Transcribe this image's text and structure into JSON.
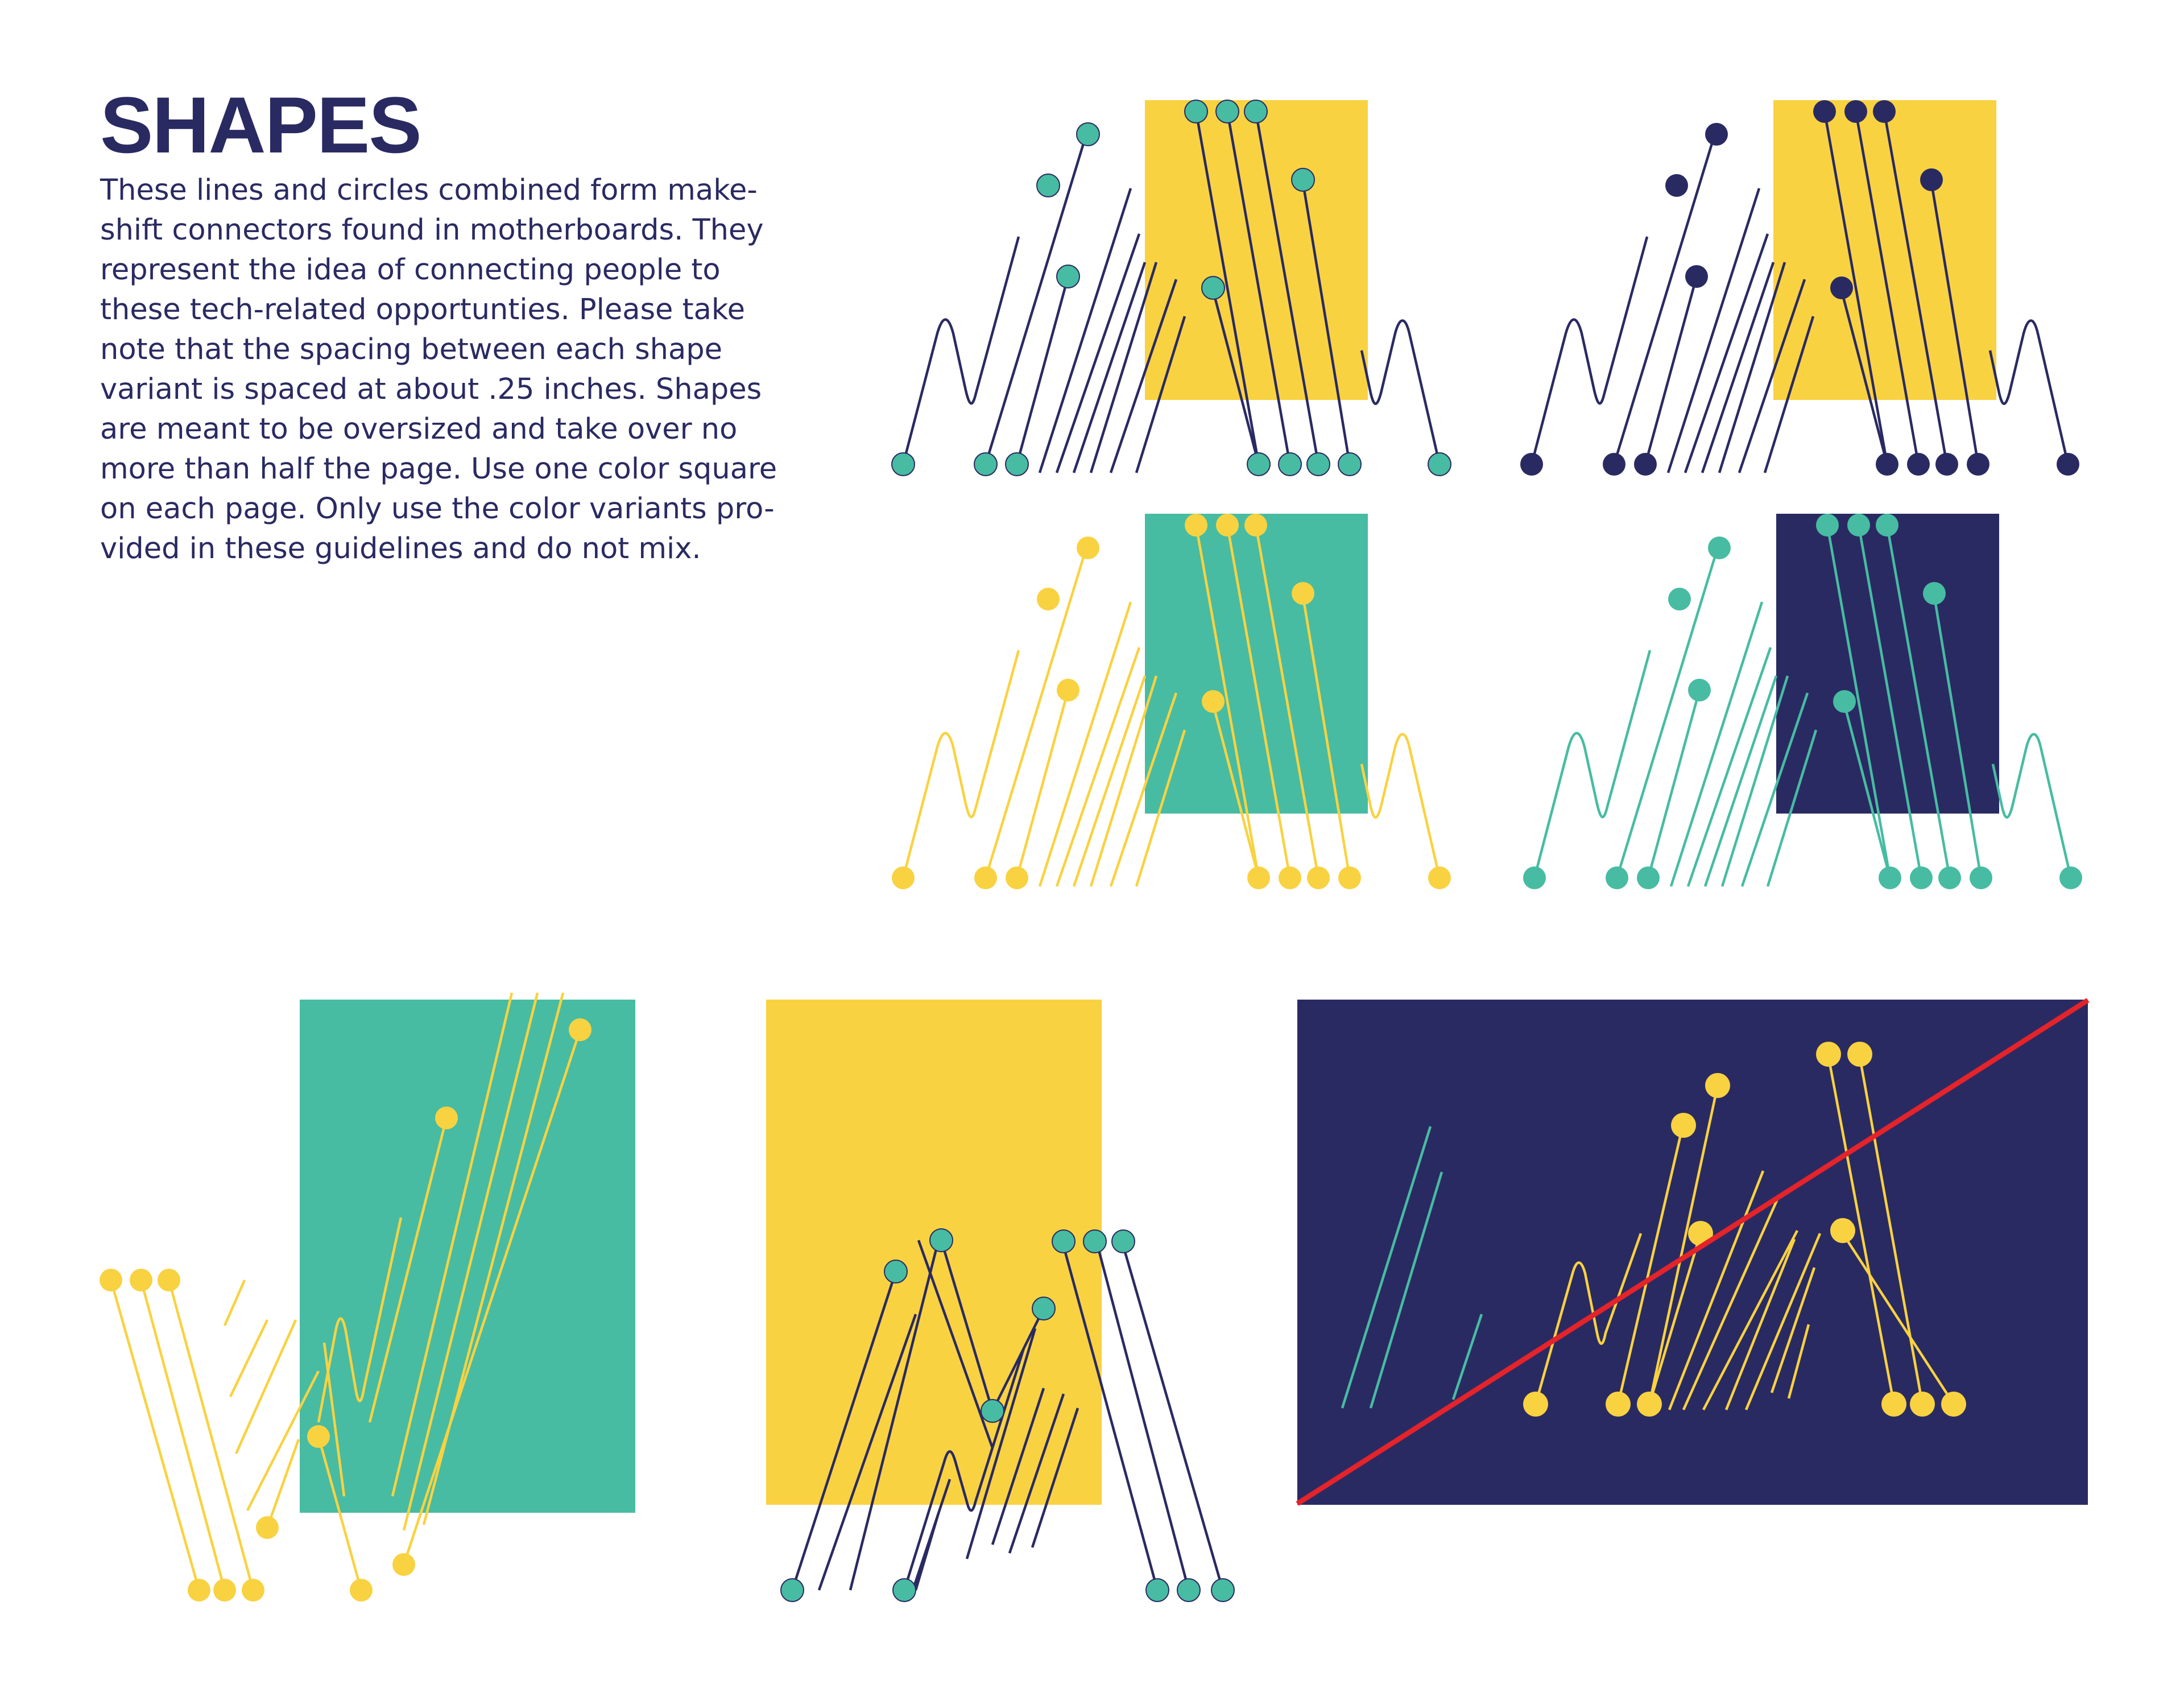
{
  "header": {
    "title": "SHAPES",
    "body_lines": [
      "These lines and circles combined form make-",
      "shift connectors found in motherboards. They",
      "represent the idea of connecting people to",
      "these tech-related opportunties. Please take",
      "note that the spacing between each shape",
      "variant is spaced at about .25 inches. Shapes",
      "are meant to be oversized and take over no",
      "more than half the page. Use one color square",
      "on each page. Only use the color variants pro-",
      "vided in these guidelines and do not mix."
    ]
  },
  "colors": {
    "navy": "#2a2a62",
    "teal": "#47bca2",
    "yellow": "#f9d241",
    "red": "#e4232a"
  },
  "variants": [
    {
      "name": "variant-yellow-square-teal-dots",
      "square": "yellow",
      "lines": "navy",
      "dots": "teal"
    },
    {
      "name": "variant-yellow-square-navy-dots",
      "square": "yellow",
      "lines": "navy",
      "dots": "navy"
    },
    {
      "name": "variant-teal-square-yellow-lines",
      "square": "teal",
      "lines": "yellow",
      "dots": "yellow"
    },
    {
      "name": "variant-navy-square-teal-lines",
      "square": "navy",
      "lines": "teal",
      "dots": "teal"
    }
  ],
  "examples": [
    {
      "name": "example-teal-square-yellow-connectors",
      "square": "teal",
      "lines": "yellow",
      "dots": "yellow"
    },
    {
      "name": "example-yellow-square-navy-connectors",
      "square": "yellow",
      "lines": "navy",
      "dots": "teal"
    },
    {
      "name": "example-incorrect-mixed-colors",
      "square": "navy",
      "lines": "yellow",
      "dots": "yellow",
      "accent_lines": "teal",
      "strike": "red"
    }
  ]
}
